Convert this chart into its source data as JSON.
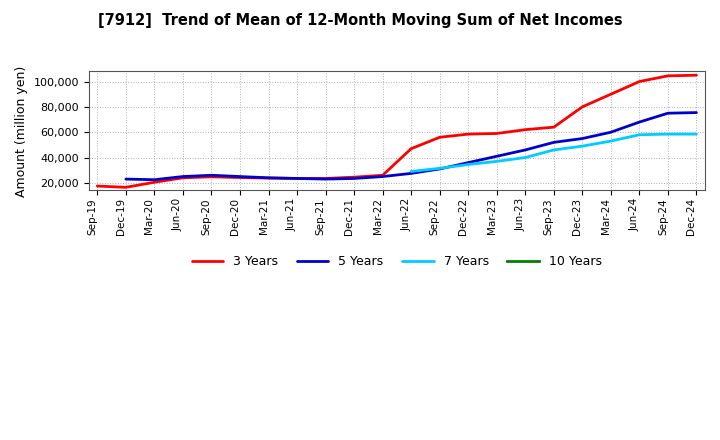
{
  "title": "[7912]  Trend of Mean of 12-Month Moving Sum of Net Incomes",
  "ylabel": "Amount (million yen)",
  "background_color": "#ffffff",
  "plot_bg_color": "#ffffff",
  "grid_color": "#b0b0b0",
  "x_labels": [
    "Sep-19",
    "Dec-19",
    "Mar-20",
    "Jun-20",
    "Sep-20",
    "Dec-20",
    "Mar-21",
    "Jun-21",
    "Sep-21",
    "Dec-21",
    "Mar-22",
    "Jun-22",
    "Sep-22",
    "Dec-22",
    "Mar-23",
    "Jun-23",
    "Sep-23",
    "Dec-23",
    "Mar-24",
    "Jun-24",
    "Sep-24",
    "Dec-24"
  ],
  "series": {
    "3 Years": {
      "color": "#ff0000",
      "data_x": [
        0,
        1,
        2,
        3,
        4,
        5,
        6,
        7,
        8,
        9,
        10,
        11,
        12,
        13,
        14,
        15,
        16,
        17,
        18,
        19,
        20,
        21
      ],
      "data_y": [
        17500,
        16500,
        20500,
        24000,
        24800,
        24200,
        23800,
        23500,
        23500,
        24500,
        26000,
        47000,
        56000,
        58500,
        59000,
        62000,
        64000,
        80000,
        90000,
        100000,
        104500,
        105000
      ]
    },
    "5 Years": {
      "color": "#0000cc",
      "data_x": [
        1,
        2,
        3,
        4,
        5,
        6,
        7,
        8,
        9,
        10,
        11,
        12,
        13,
        14,
        15,
        16,
        17,
        18,
        19,
        20,
        21
      ],
      "data_y": [
        23000,
        22500,
        25000,
        26000,
        25000,
        24000,
        23500,
        23000,
        23500,
        25000,
        27500,
        31000,
        36000,
        41000,
        46000,
        52000,
        55000,
        60000,
        68000,
        75000,
        75500
      ]
    },
    "7 Years": {
      "color": "#00ccff",
      "data_x": [
        11,
        12,
        13,
        14,
        15,
        16,
        17,
        18,
        19,
        20,
        21
      ],
      "data_y": [
        29000,
        31500,
        34500,
        37000,
        40000,
        46000,
        49000,
        53000,
        58000,
        58500,
        58500
      ]
    },
    "10 Years": {
      "color": "#008000",
      "data_x": [],
      "data_y": []
    }
  },
  "ylim": [
    14000,
    108000
  ],
  "yticks": [
    20000,
    40000,
    60000,
    80000,
    100000
  ],
  "legend_labels": [
    "3 Years",
    "5 Years",
    "7 Years",
    "10 Years"
  ],
  "legend_colors": [
    "#ff0000",
    "#0000cc",
    "#00ccff",
    "#008000"
  ]
}
